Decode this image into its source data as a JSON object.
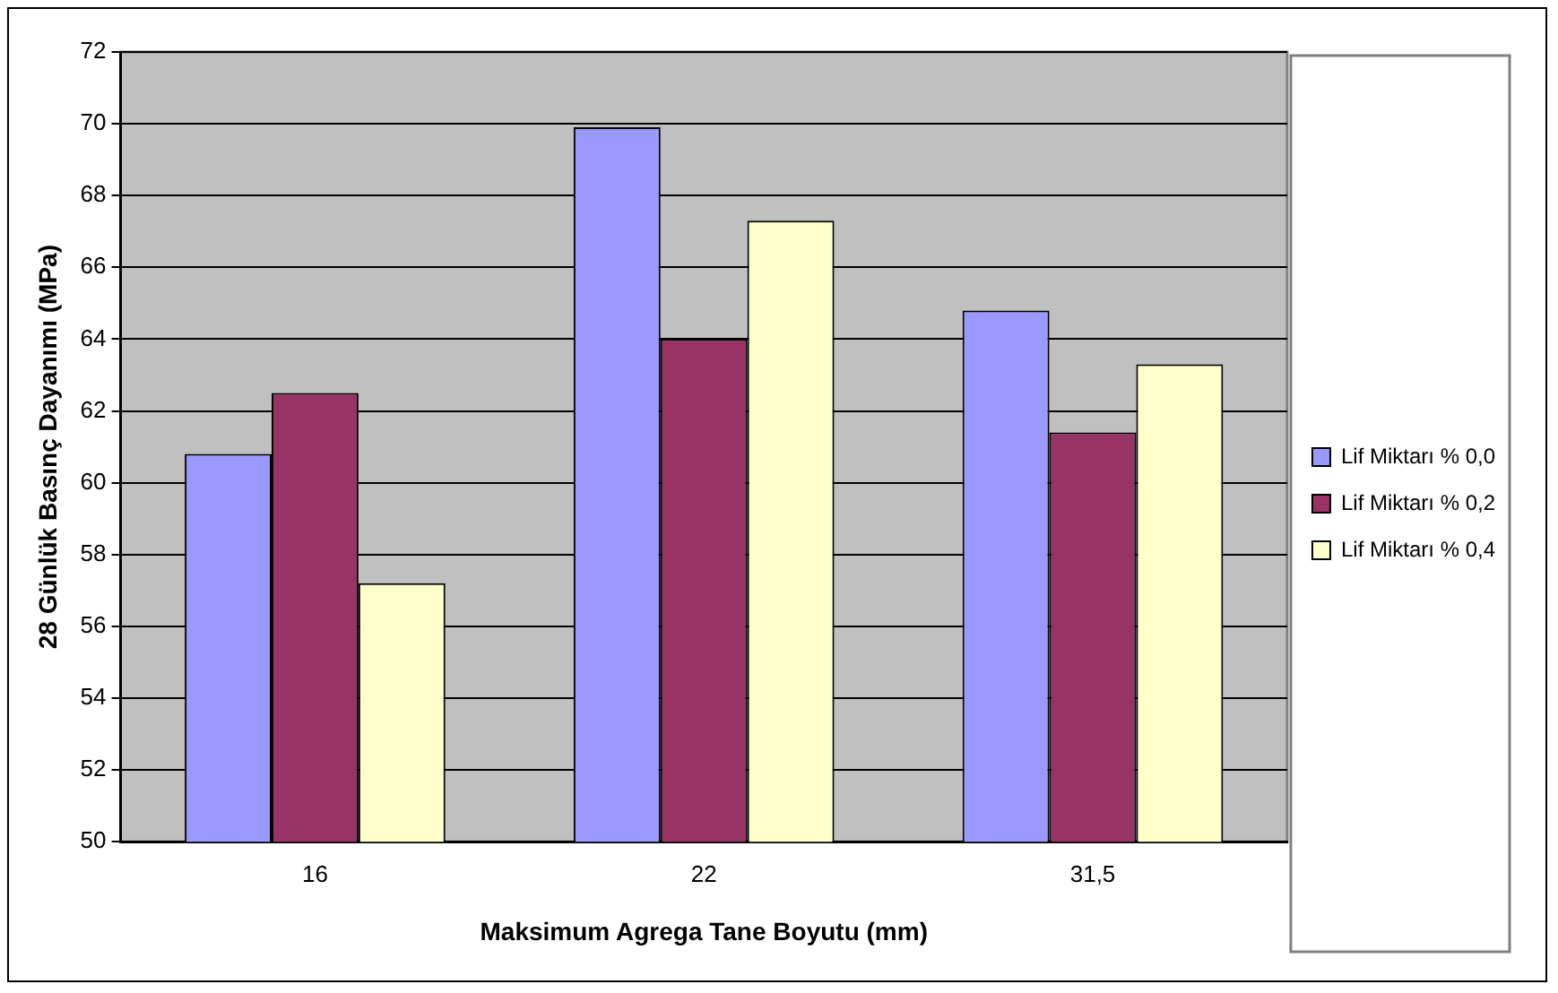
{
  "chart_data": {
    "type": "bar",
    "xlabel": "Maksimum Agrega Tane Boyutu (mm)",
    "ylabel": "28 Günlük Basınç Dayanımı (MPa)",
    "categories": [
      "16",
      "22",
      "31,5"
    ],
    "series": [
      {
        "name": "Lif Miktarı % 0,0",
        "color": "#9999ff",
        "values": [
          60.8,
          69.9,
          64.8
        ]
      },
      {
        "name": "Lif Miktarı % 0,2",
        "color": "#993366",
        "values": [
          62.5,
          64.0,
          61.4
        ]
      },
      {
        "name": "Lif Miktarı % 0,4",
        "color": "#ffffcc",
        "values": [
          57.2,
          67.3,
          63.3
        ]
      }
    ],
    "ylim": [
      50,
      72
    ],
    "yticks": [
      50,
      52,
      54,
      56,
      58,
      60,
      62,
      64,
      66,
      68,
      70,
      72
    ],
    "grid": "y",
    "legend": "right"
  }
}
